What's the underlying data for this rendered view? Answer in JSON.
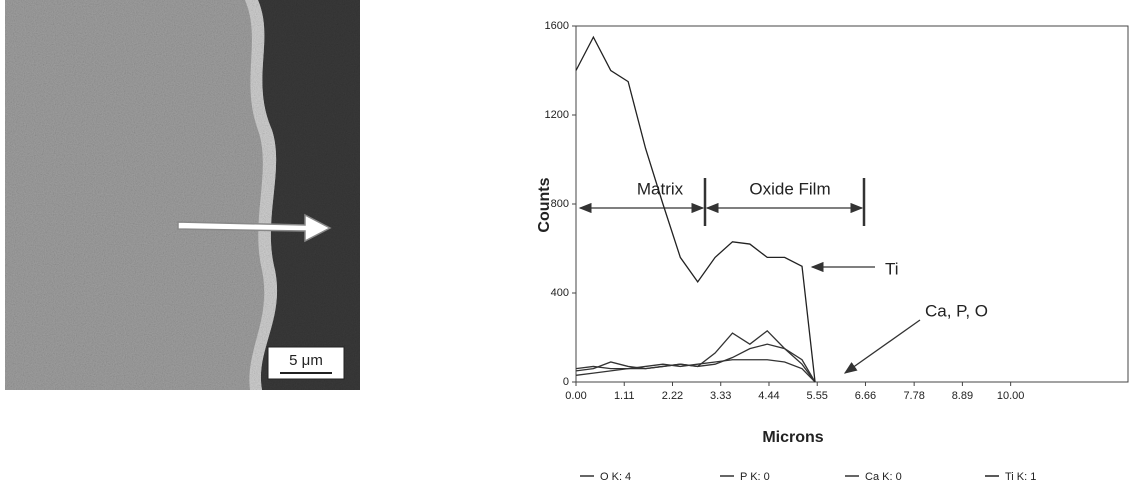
{
  "image": {
    "scale_bar": "5 μm"
  },
  "chart_data": {
    "type": "line",
    "x_label": "Microns",
    "y_label": "Counts",
    "x": [
      0,
      0.4,
      0.8,
      1.2,
      1.6,
      2.0,
      2.4,
      2.8,
      3.2,
      3.6,
      4.0,
      4.4,
      4.8,
      5.2,
      5.5
    ],
    "series": [
      {
        "name": "O K: 4",
        "color": "#333333",
        "values": [
          50,
          60,
          90,
          70,
          60,
          70,
          80,
          70,
          130,
          220,
          170,
          230,
          150,
          80,
          0
        ]
      },
      {
        "name": "P K: 0",
        "color": "#333333",
        "values": [
          60,
          70,
          60,
          60,
          70,
          80,
          70,
          80,
          90,
          100,
          100,
          100,
          90,
          60,
          0
        ]
      },
      {
        "name": "Ca K: 0",
        "color": "#333333",
        "values": [
          30,
          40,
          50,
          60,
          60,
          70,
          80,
          70,
          80,
          110,
          150,
          170,
          150,
          100,
          0
        ]
      },
      {
        "name": "Ti K: 1",
        "color": "#222222",
        "values": [
          1400,
          1550,
          1400,
          1350,
          1050,
          800,
          560,
          450,
          560,
          630,
          620,
          560,
          560,
          520,
          0
        ]
      }
    ],
    "xlim": [
      0,
      12.7
    ],
    "ylim": [
      0,
      1600
    ],
    "xticks": [
      {
        "value": 0,
        "label": "0.00"
      },
      1.11,
      2.22,
      3.33,
      4.44,
      5.55,
      6.66,
      7.78,
      8.89,
      {
        "value": 10,
        "label": "10.00"
      }
    ],
    "yticks": [
      0,
      400,
      800,
      1200,
      1600
    ],
    "annotations": [
      "Matrix",
      "Oxide Film",
      "Ti",
      "Ca, P, O"
    ]
  }
}
